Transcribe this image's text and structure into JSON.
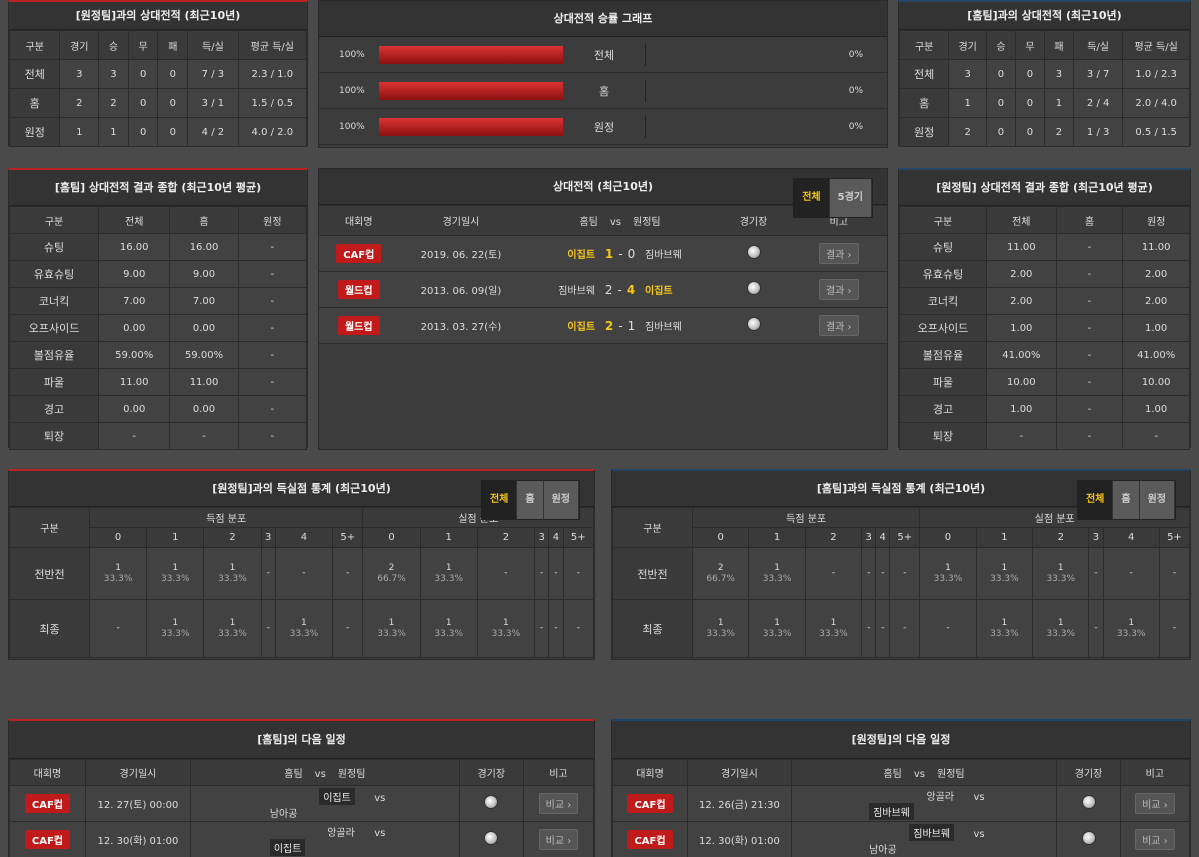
{
  "h2h_away": {
    "title": "[원정팀]과의 상대전적 (최근10년)",
    "headers": [
      "구분",
      "경기",
      "승",
      "무",
      "패",
      "득/실",
      "평균 득/실"
    ],
    "rows": [
      [
        "전체",
        "3",
        "3",
        "0",
        "0",
        "7 / 3",
        "2.3 / 1.0"
      ],
      [
        "홈",
        "2",
        "2",
        "0",
        "0",
        "3 / 1",
        "1.5 / 0.5"
      ],
      [
        "원정",
        "1",
        "1",
        "0",
        "0",
        "4 / 2",
        "4.0 / 2.0"
      ]
    ]
  },
  "h2h_home": {
    "title": "[홈팀]과의 상대전적 (최근10년)",
    "headers": [
      "구분",
      "경기",
      "승",
      "무",
      "패",
      "득/실",
      "평균 득/실"
    ],
    "rows": [
      [
        "전체",
        "3",
        "0",
        "0",
        "3",
        "3 / 7",
        "1.0 / 2.3"
      ],
      [
        "홈",
        "1",
        "0",
        "0",
        "1",
        "2 / 4",
        "2.0 / 4.0"
      ],
      [
        "원정",
        "2",
        "0",
        "0",
        "2",
        "1 / 3",
        "0.5 / 1.5"
      ]
    ]
  },
  "winrate": {
    "title": "상대전적 승률 그래프",
    "rows": [
      {
        "left": "100%",
        "label": "전체",
        "right": "0%",
        "fill": 1.0
      },
      {
        "left": "100%",
        "label": "홈",
        "right": "0%",
        "fill": 1.0
      },
      {
        "left": "100%",
        "label": "원정",
        "right": "0%",
        "fill": 1.0
      }
    ]
  },
  "summary_home": {
    "title": "[홈팀] 상대전적 결과 종합 (최근10년 평균)",
    "headers": [
      "구분",
      "전체",
      "홈",
      "원정"
    ],
    "rows": [
      [
        "슈팅",
        "16.00",
        "16.00",
        "-"
      ],
      [
        "유효슈팅",
        "9.00",
        "9.00",
        "-"
      ],
      [
        "코너킥",
        "7.00",
        "7.00",
        "-"
      ],
      [
        "오프사이드",
        "0.00",
        "0.00",
        "-"
      ],
      [
        "볼점유율",
        "59.00%",
        "59.00%",
        "-"
      ],
      [
        "파울",
        "11.00",
        "11.00",
        "-"
      ],
      [
        "경고",
        "0.00",
        "0.00",
        "-"
      ],
      [
        "퇴장",
        "-",
        "-",
        "-"
      ]
    ]
  },
  "summary_away": {
    "title": "[원정팀] 상대전적 결과 종합 (최근10년 평균)",
    "headers": [
      "구분",
      "전체",
      "홈",
      "원정"
    ],
    "rows": [
      [
        "슈팅",
        "11.00",
        "-",
        "11.00"
      ],
      [
        "유효슈팅",
        "2.00",
        "-",
        "2.00"
      ],
      [
        "코너킥",
        "2.00",
        "-",
        "2.00"
      ],
      [
        "오프사이드",
        "1.00",
        "-",
        "1.00"
      ],
      [
        "볼점유율",
        "41.00%",
        "-",
        "41.00%"
      ],
      [
        "파울",
        "10.00",
        "-",
        "10.00"
      ],
      [
        "경고",
        "1.00",
        "-",
        "1.00"
      ],
      [
        "퇴장",
        "-",
        "-",
        "-"
      ]
    ]
  },
  "h2h_list": {
    "title": "상대전적 (최근10년)",
    "tabs": [
      "전체",
      "5경기"
    ],
    "headers": {
      "league": "대회명",
      "date": "경기일시",
      "home": "홈팀",
      "vs": "vs",
      "away": "원정팀",
      "venue": "경기장",
      "note": "비고"
    },
    "rows": [
      {
        "league": "CAF컵",
        "date": "2019. 06. 22(토)",
        "home": "이집트",
        "hs": "1",
        "sep": "-",
        "as": "0",
        "away": "짐바브웨",
        "btn": "결과",
        "win": "home"
      },
      {
        "league": "월드컵",
        "date": "2013. 06. 09(일)",
        "home": "짐바브웨",
        "hs": "2",
        "sep": "-",
        "as": "4",
        "away": "이집트",
        "btn": "결과",
        "win": "away"
      },
      {
        "league": "월드컵",
        "date": "2013. 03. 27(수)",
        "home": "이집트",
        "hs": "2",
        "sep": "-",
        "as": "1",
        "away": "짐바브웨",
        "btn": "결과",
        "win": "home"
      }
    ]
  },
  "goals_away": {
    "title": "[원정팀]과의 득실점 통계 (최근10년)",
    "tabs": [
      "전체",
      "홈",
      "원정"
    ],
    "col0": "구분",
    "g1": "득점 분포",
    "g2": "실점 분포",
    "nums": [
      "0",
      "1",
      "2",
      "3",
      "4",
      "5+"
    ],
    "rows": [
      {
        "label": "전반전",
        "cells": [
          [
            "1",
            "33.3%"
          ],
          [
            "1",
            "33.3%"
          ],
          [
            "1",
            "33.3%"
          ],
          [
            "-",
            ""
          ],
          [
            "-",
            ""
          ],
          [
            "-",
            ""
          ],
          [
            "2",
            "66.7%"
          ],
          [
            "1",
            "33.3%"
          ],
          [
            "-",
            ""
          ],
          [
            "-",
            ""
          ],
          [
            "-",
            ""
          ],
          [
            "-",
            ""
          ]
        ]
      },
      {
        "label": "최종",
        "cells": [
          [
            "-",
            ""
          ],
          [
            "1",
            "33.3%"
          ],
          [
            "1",
            "33.3%"
          ],
          [
            "-",
            ""
          ],
          [
            "1",
            "33.3%"
          ],
          [
            "-",
            ""
          ],
          [
            "1",
            "33.3%"
          ],
          [
            "1",
            "33.3%"
          ],
          [
            "1",
            "33.3%"
          ],
          [
            "-",
            ""
          ],
          [
            "-",
            ""
          ],
          [
            "-",
            ""
          ]
        ]
      }
    ]
  },
  "goals_home": {
    "title": "[홈팀]과의 득실점 통계 (최근10년)",
    "tabs": [
      "전체",
      "홈",
      "원정"
    ],
    "col0": "구분",
    "g1": "득점 분포",
    "g2": "실점 분포",
    "nums": [
      "0",
      "1",
      "2",
      "3",
      "4",
      "5+"
    ],
    "rows": [
      {
        "label": "전반전",
        "cells": [
          [
            "2",
            "66.7%"
          ],
          [
            "1",
            "33.3%"
          ],
          [
            "-",
            ""
          ],
          [
            "-",
            ""
          ],
          [
            "-",
            ""
          ],
          [
            "-",
            ""
          ],
          [
            "1",
            "33.3%"
          ],
          [
            "1",
            "33.3%"
          ],
          [
            "1",
            "33.3%"
          ],
          [
            "-",
            ""
          ],
          [
            "-",
            ""
          ],
          [
            "-",
            ""
          ]
        ]
      },
      {
        "label": "최종",
        "cells": [
          [
            "1",
            "33.3%"
          ],
          [
            "1",
            "33.3%"
          ],
          [
            "1",
            "33.3%"
          ],
          [
            "-",
            ""
          ],
          [
            "-",
            ""
          ],
          [
            "-",
            ""
          ],
          [
            "-",
            ""
          ],
          [
            "1",
            "33.3%"
          ],
          [
            "1",
            "33.3%"
          ],
          [
            "-",
            ""
          ],
          [
            "1",
            "33.3%"
          ],
          [
            "-",
            ""
          ]
        ]
      }
    ]
  },
  "next_home": {
    "title": "[홈팀]의 다음 일정",
    "headers": {
      "league": "대회명",
      "date": "경기일시",
      "home": "홈팀",
      "vs": "vs",
      "away": "원정팀",
      "venue": "경기장",
      "note": "비고"
    },
    "rows": [
      {
        "league": "CAF컵",
        "date": "12. 27(토) 00:00",
        "home": "이집트",
        "vs": "vs",
        "away": "남아공",
        "btn": "비교",
        "hl": "home"
      },
      {
        "league": "CAF컵",
        "date": "12. 30(화) 01:00",
        "home": "앙골라",
        "vs": "vs",
        "away": "이집트",
        "btn": "비교",
        "hl": "away"
      }
    ]
  },
  "next_away": {
    "title": "[원정팀]의 다음 일정",
    "headers": {
      "league": "대회명",
      "date": "경기일시",
      "home": "홈팀",
      "vs": "vs",
      "away": "원정팀",
      "venue": "경기장",
      "note": "비고"
    },
    "rows": [
      {
        "league": "CAF컵",
        "date": "12. 26(금) 21:30",
        "home": "앙골라",
        "vs": "vs",
        "away": "짐바브웨",
        "btn": "비교",
        "hl": "away"
      },
      {
        "league": "CAF컵",
        "date": "12. 30(화) 01:00",
        "home": "짐바브웨",
        "vs": "vs",
        "away": "남아공",
        "btn": "비교",
        "hl": "home"
      }
    ]
  }
}
